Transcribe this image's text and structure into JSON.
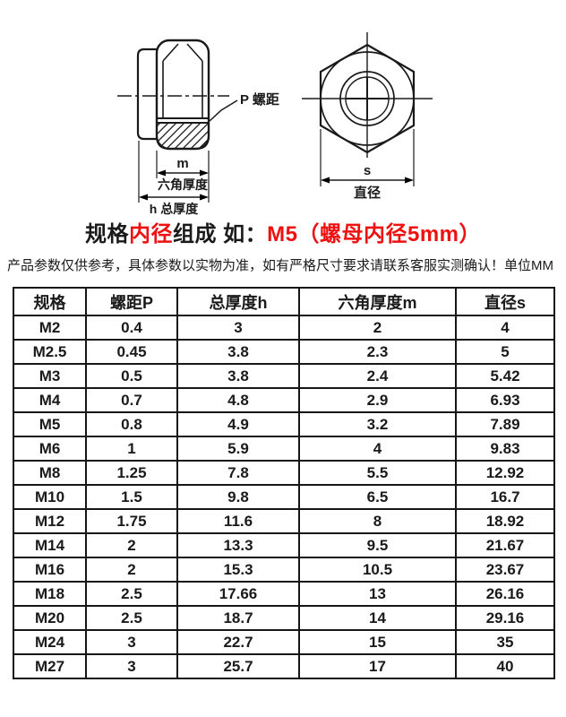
{
  "colors": {
    "ink": "#1a1a1a",
    "accent_red": "#ee1111",
    "table_border": "#161616",
    "background": "#ffffff"
  },
  "diagram_side": {
    "labels": {
      "pitch": "P 螺距",
      "m": "m",
      "hex_thickness": "六角厚度",
      "total_thickness": "h 总厚度"
    }
  },
  "diagram_top": {
    "labels": {
      "s": "s",
      "diameter": "直径"
    }
  },
  "heading": {
    "segments": [
      {
        "text": "规格",
        "color": "#1a1a1a"
      },
      {
        "text": "内径",
        "color": "#ee1111"
      },
      {
        "text": "组成 如：",
        "color": "#1a1a1a"
      },
      {
        "text": "M5（螺母内径5mm）",
        "color": "#ee1111"
      }
    ]
  },
  "note": {
    "text": "产品参数仅供参考，具体参数以实物为准，如有严格尺寸要求请联系客服实测确认！",
    "unit": "单位MM"
  },
  "table": {
    "headers": [
      "规格",
      "螺距P",
      "总厚度h",
      "六角厚度m",
      "直径s"
    ],
    "rows": [
      [
        "M2",
        "0.4",
        "3",
        "2",
        "4"
      ],
      [
        "M2.5",
        "0.45",
        "3.8",
        "2.3",
        "5"
      ],
      [
        "M3",
        "0.5",
        "3.8",
        "2.4",
        "5.42"
      ],
      [
        "M4",
        "0.7",
        "4.8",
        "2.9",
        "6.93"
      ],
      [
        "M5",
        "0.8",
        "4.9",
        "3.2",
        "7.89"
      ],
      [
        "M6",
        "1",
        "5.9",
        "4",
        "9.83"
      ],
      [
        "M8",
        "1.25",
        "7.8",
        "5.5",
        "12.92"
      ],
      [
        "M10",
        "1.5",
        "9.8",
        "6.5",
        "16.7"
      ],
      [
        "M12",
        "1.75",
        "11.6",
        "8",
        "18.92"
      ],
      [
        "M14",
        "2",
        "13.3",
        "9.5",
        "21.67"
      ],
      [
        "M16",
        "2",
        "15.3",
        "10.5",
        "23.67"
      ],
      [
        "M18",
        "2.5",
        "17.66",
        "13",
        "26.16"
      ],
      [
        "M20",
        "2.5",
        "18.7",
        "14",
        "29.16"
      ],
      [
        "M24",
        "3",
        "22.7",
        "15",
        "35"
      ],
      [
        "M27",
        "3",
        "25.7",
        "17",
        "40"
      ]
    ]
  }
}
